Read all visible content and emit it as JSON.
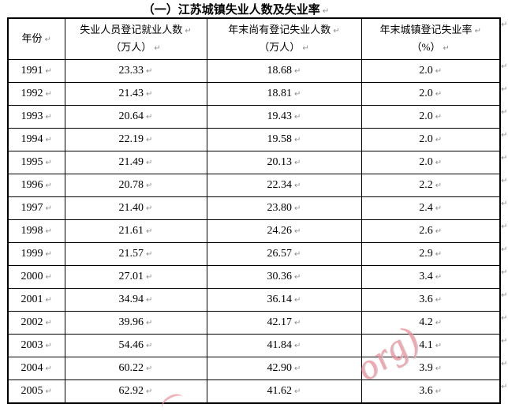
{
  "title": {
    "text": "（一）江苏城镇失业人数及失业率"
  },
  "marks": {
    "paragraph": "↵"
  },
  "table": {
    "columns": [
      {
        "line1": "年份",
        "line2": ""
      },
      {
        "line1": "失业人员登记就业人数",
        "line2": "（万人）"
      },
      {
        "line1": "年末尚有登记失业人数",
        "line2": "（万人）"
      },
      {
        "line1": "年末城镇登记失业率",
        "line2": "（%）"
      }
    ],
    "rows": [
      {
        "year": "1991",
        "registered_employed": "23.33",
        "yearend_unemployed": "18.68",
        "rate": "2.0"
      },
      {
        "year": "1992",
        "registered_employed": "21.43",
        "yearend_unemployed": "18.81",
        "rate": "2.0"
      },
      {
        "year": "1993",
        "registered_employed": "20.64",
        "yearend_unemployed": "19.43",
        "rate": "2.0"
      },
      {
        "year": "1994",
        "registered_employed": "22.19",
        "yearend_unemployed": "19.58",
        "rate": "2.0"
      },
      {
        "year": "1995",
        "registered_employed": "21.49",
        "yearend_unemployed": "20.13",
        "rate": "2.0"
      },
      {
        "year": "1996",
        "registered_employed": "20.78",
        "yearend_unemployed": "22.34",
        "rate": "2.2"
      },
      {
        "year": "1997",
        "registered_employed": "21.40",
        "yearend_unemployed": "23.80",
        "rate": "2.4"
      },
      {
        "year": "1998",
        "registered_employed": "21.61",
        "yearend_unemployed": "24.26",
        "rate": "2.6"
      },
      {
        "year": "1999",
        "registered_employed": "21.57",
        "yearend_unemployed": "26.57",
        "rate": "2.9"
      },
      {
        "year": "2000",
        "registered_employed": "27.01",
        "yearend_unemployed": "30.36",
        "rate": "3.4"
      },
      {
        "year": "2001",
        "registered_employed": "34.94",
        "yearend_unemployed": "36.14",
        "rate": "3.6"
      },
      {
        "year": "2002",
        "registered_employed": "39.96",
        "yearend_unemployed": "42.17",
        "rate": "4.2"
      },
      {
        "year": "2003",
        "registered_employed": "54.46",
        "yearend_unemployed": "41.84",
        "rate": "4.1"
      },
      {
        "year": "2004",
        "registered_employed": "60.22",
        "yearend_unemployed": "42.90",
        "rate": "3.9"
      },
      {
        "year": "2005",
        "registered_employed": "62.92",
        "yearend_unemployed": "41.62",
        "rate": "3.6"
      }
    ]
  },
  "watermark": {
    "text": "org)"
  }
}
